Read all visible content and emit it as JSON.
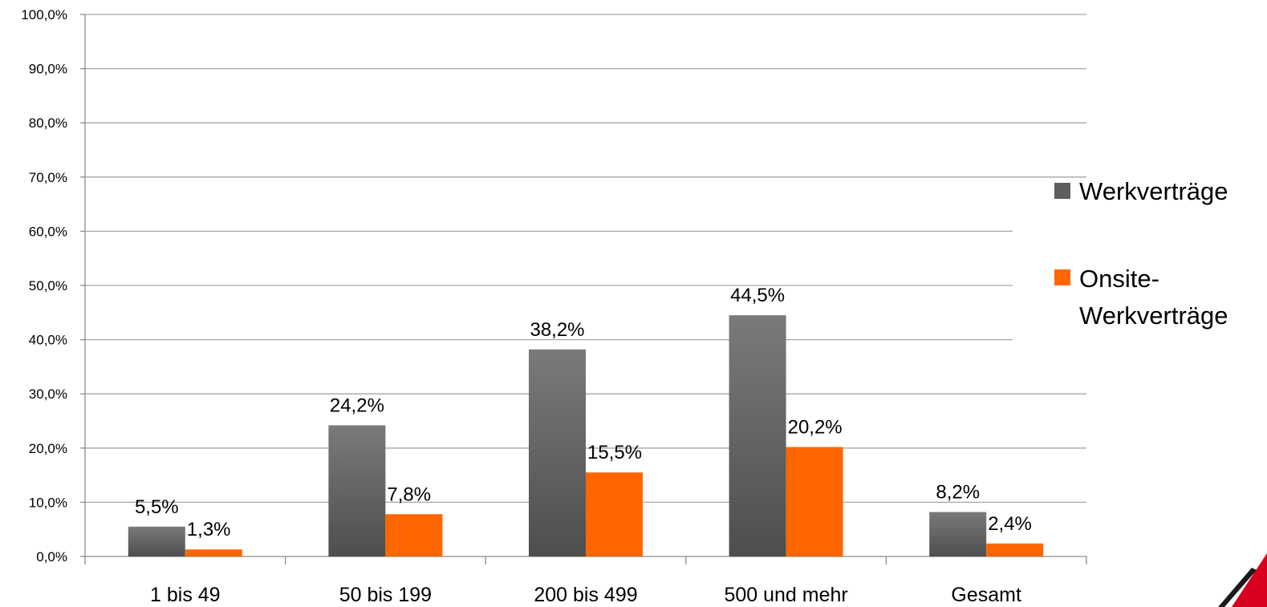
{
  "chart_data": {
    "type": "bar",
    "categories": [
      "1 bis 49",
      "50 bis 199",
      "200 bis 499",
      "500 und mehr",
      "Gesamt"
    ],
    "series": [
      {
        "name": "Werkverträge",
        "values": [
          5.5,
          24.2,
          38.2,
          44.5,
          8.2
        ],
        "labels": [
          "5,5%",
          "24,2%",
          "38,2%",
          "44,5%",
          "8,2%"
        ]
      },
      {
        "name": "Onsite-Werkverträge",
        "name_lines": [
          "Onsite-",
          "Werkverträge"
        ],
        "values": [
          1.3,
          7.8,
          15.5,
          20.2,
          2.4
        ],
        "labels": [
          "1,3%",
          "7,8%",
          "15,5%",
          "20,2%",
          "2,4%"
        ]
      }
    ],
    "ylim": [
      0,
      100
    ],
    "yticks": [
      "0,0%",
      "10,0%",
      "20,0%",
      "30,0%",
      "40,0%",
      "50,0%",
      "60,0%",
      "70,0%",
      "80,0%",
      "90,0%",
      "100,0%"
    ],
    "grid": true,
    "legend": "right",
    "colors": {
      "Werkverträge": "#5e5e5e",
      "Onsite-Werkverträge": "#ff6600"
    },
    "decoration": "red-corner-logo"
  }
}
